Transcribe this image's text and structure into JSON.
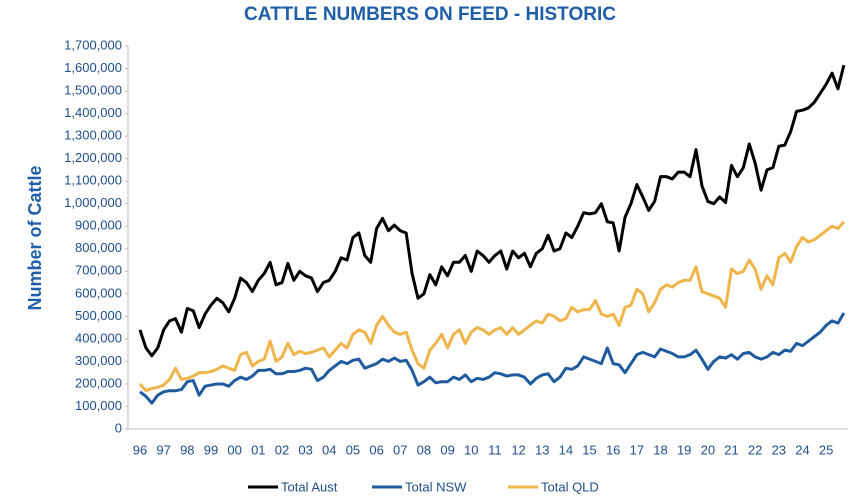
{
  "chart_data": {
    "type": "line",
    "title": "CATTLE NUMBERS ON FEED - HISTORIC",
    "y_label": "Number of Cattle",
    "categories": [
      "96",
      null,
      null,
      null,
      "97",
      null,
      null,
      null,
      "98",
      null,
      null,
      null,
      "99",
      null,
      null,
      null,
      "00",
      null,
      null,
      null,
      "01",
      null,
      null,
      null,
      "02",
      null,
      null,
      null,
      "03",
      null,
      null,
      null,
      "04",
      null,
      null,
      null,
      "05",
      null,
      null,
      null,
      "06",
      null,
      null,
      null,
      "07",
      null,
      null,
      null,
      "08",
      null,
      null,
      null,
      "09",
      null,
      null,
      null,
      "10",
      null,
      null,
      null,
      "11",
      null,
      null,
      null,
      "12",
      null,
      null,
      null,
      "13",
      null,
      null,
      null,
      "14",
      null,
      null,
      null,
      "15",
      null,
      null,
      null,
      "16",
      null,
      null,
      null,
      "17",
      null,
      null,
      null,
      "18",
      null,
      null,
      null,
      "19",
      null,
      null,
      null,
      "20",
      null,
      null,
      null,
      "21",
      null,
      null,
      null,
      "22",
      null,
      null,
      null,
      "23",
      null,
      null,
      null,
      "24",
      null,
      null,
      null,
      "25",
      null,
      null,
      null
    ],
    "series": [
      {
        "name": "Total Aust",
        "color": "#000000",
        "values": [
          440000,
          360000,
          325000,
          360000,
          440000,
          480000,
          490000,
          430000,
          535000,
          525000,
          450000,
          510000,
          550000,
          580000,
          560000,
          520000,
          580000,
          670000,
          650000,
          610000,
          660000,
          690000,
          740000,
          640000,
          650000,
          735000,
          660000,
          700000,
          680000,
          670000,
          610000,
          650000,
          660000,
          700000,
          760000,
          750000,
          850000,
          870000,
          770000,
          740000,
          890000,
          935000,
          880000,
          905000,
          880000,
          870000,
          690000,
          580000,
          600000,
          685000,
          640000,
          720000,
          680000,
          740000,
          740000,
          770000,
          700000,
          790000,
          770000,
          740000,
          770000,
          790000,
          710000,
          790000,
          760000,
          780000,
          720000,
          780000,
          800000,
          860000,
          790000,
          800000,
          870000,
          850000,
          900000,
          960000,
          955000,
          960000,
          1000000,
          920000,
          915000,
          790000,
          940000,
          1000000,
          1085000,
          1030000,
          970000,
          1010000,
          1120000,
          1120000,
          1110000,
          1140000,
          1140000,
          1120000,
          1240000,
          1080000,
          1010000,
          1000000,
          1030000,
          1005000,
          1170000,
          1120000,
          1160000,
          1265000,
          1180000,
          1060000,
          1150000,
          1160000,
          1255000,
          1260000,
          1320000,
          1410000,
          1415000,
          1425000,
          1450000,
          1490000,
          1530000,
          1580000,
          1510000,
          1615000
        ]
      },
      {
        "name": "Total NSW",
        "color": "#1f5b9e",
        "values": [
          165000,
          145000,
          115000,
          150000,
          165000,
          170000,
          170000,
          175000,
          210000,
          215000,
          150000,
          190000,
          195000,
          200000,
          200000,
          190000,
          215000,
          230000,
          220000,
          235000,
          260000,
          260000,
          265000,
          245000,
          245000,
          255000,
          255000,
          260000,
          270000,
          265000,
          215000,
          230000,
          260000,
          280000,
          300000,
          290000,
          305000,
          310000,
          270000,
          280000,
          290000,
          310000,
          300000,
          315000,
          300000,
          305000,
          260000,
          195000,
          210000,
          230000,
          205000,
          210000,
          210000,
          230000,
          220000,
          240000,
          210000,
          225000,
          220000,
          230000,
          250000,
          245000,
          235000,
          240000,
          240000,
          230000,
          200000,
          225000,
          240000,
          245000,
          210000,
          230000,
          270000,
          265000,
          280000,
          320000,
          310000,
          300000,
          290000,
          360000,
          290000,
          285000,
          250000,
          290000,
          330000,
          340000,
          330000,
          320000,
          355000,
          345000,
          335000,
          320000,
          320000,
          330000,
          350000,
          310000,
          265000,
          300000,
          320000,
          315000,
          330000,
          310000,
          335000,
          340000,
          320000,
          310000,
          320000,
          340000,
          330000,
          350000,
          345000,
          380000,
          370000,
          390000,
          410000,
          430000,
          460000,
          480000,
          470000,
          515000
        ]
      },
      {
        "name": "Total QLD",
        "color": "#f0b54a",
        "values": [
          200000,
          170000,
          180000,
          185000,
          195000,
          220000,
          270000,
          220000,
          225000,
          235000,
          250000,
          250000,
          255000,
          265000,
          280000,
          270000,
          260000,
          330000,
          340000,
          280000,
          300000,
          310000,
          390000,
          300000,
          320000,
          380000,
          330000,
          345000,
          335000,
          340000,
          350000,
          360000,
          320000,
          350000,
          380000,
          360000,
          420000,
          440000,
          430000,
          380000,
          460000,
          500000,
          460000,
          430000,
          420000,
          430000,
          350000,
          290000,
          270000,
          350000,
          380000,
          420000,
          360000,
          420000,
          440000,
          380000,
          430000,
          450000,
          440000,
          420000,
          440000,
          450000,
          420000,
          450000,
          420000,
          440000,
          460000,
          480000,
          470000,
          510000,
          500000,
          480000,
          490000,
          540000,
          520000,
          530000,
          530000,
          570000,
          510000,
          500000,
          510000,
          460000,
          540000,
          550000,
          620000,
          600000,
          520000,
          560000,
          620000,
          640000,
          630000,
          650000,
          660000,
          660000,
          720000,
          610000,
          600000,
          590000,
          580000,
          540000,
          710000,
          690000,
          700000,
          750000,
          710000,
          620000,
          680000,
          640000,
          760000,
          780000,
          740000,
          810000,
          850000,
          830000,
          840000,
          860000,
          880000,
          900000,
          890000,
          920000
        ]
      }
    ],
    "ylim": [
      0,
      1700000
    ],
    "yticks": [
      0,
      {
        "value": 100000,
        "label": "100,000"
      },
      {
        "value": 200000,
        "label": "200,000"
      },
      {
        "value": 300000,
        "label": "300,000"
      },
      {
        "value": 400000,
        "label": "400,000"
      },
      {
        "value": 500000,
        "label": "500,000"
      },
      {
        "value": 600000,
        "label": "600,000"
      },
      {
        "value": 700000,
        "label": "700,000"
      },
      {
        "value": 800000,
        "label": "800,000"
      },
      {
        "value": 900000,
        "label": "900,000"
      },
      {
        "value": 1000000,
        "label": "1,000,000"
      },
      {
        "value": 1100000,
        "label": "1,100,000"
      },
      {
        "value": 1200000,
        "label": "1,200,000"
      },
      {
        "value": 1300000,
        "label": "1,300,000"
      },
      {
        "value": 1400000,
        "label": "1,400,000"
      },
      {
        "value": 1500000,
        "label": "1,500,000"
      },
      {
        "value": 1600000,
        "label": "1,600,000"
      },
      {
        "value": 1700000,
        "label": "1,700,000"
      }
    ],
    "grid": false,
    "legend": "bottom"
  }
}
